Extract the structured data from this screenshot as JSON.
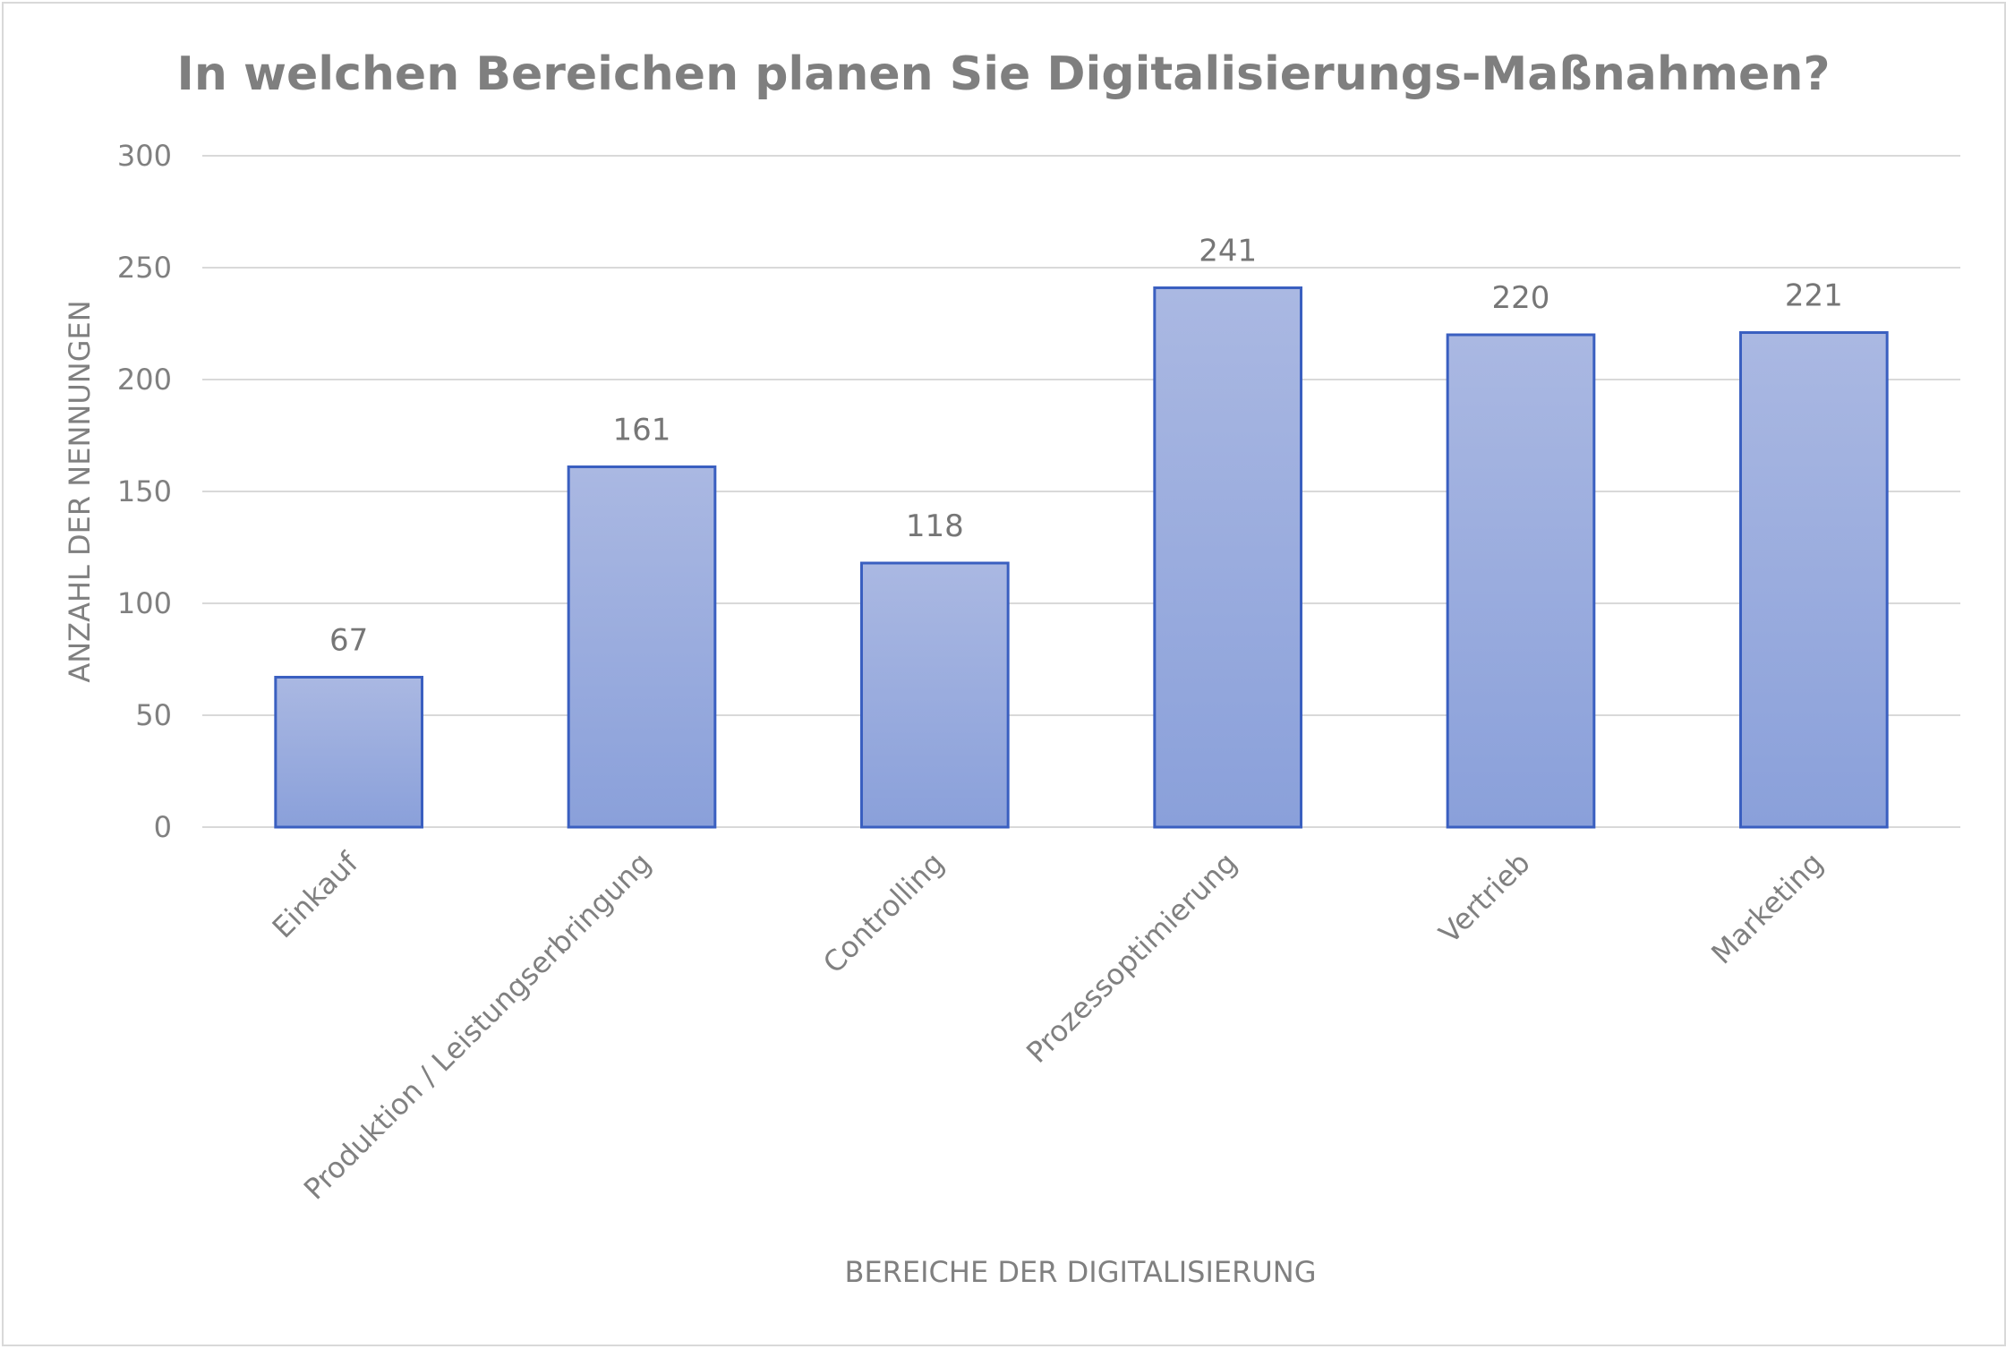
{
  "chart_data": {
    "type": "bar",
    "title": "In welchen Bereichen planen Sie Digitalisierungs-Maßnahmen?",
    "xlabel": "BEREICHE DER DIGITALISIERUNG",
    "ylabel": "ANZAHL DER NENNUNGEN",
    "categories": [
      "Einkauf",
      "Produktion / Leistungserbringung",
      "Controlling",
      "Prozessoptimierung",
      "Vertrieb",
      "Marketing"
    ],
    "values": [
      67,
      161,
      118,
      241,
      220,
      221
    ],
    "ylim": [
      0,
      300
    ],
    "yticks": [
      0,
      50,
      100,
      150,
      200,
      250,
      300
    ],
    "grid": true,
    "data_labels": true,
    "colors": {
      "bar_top": "#aab8e2",
      "bar_bottom": "#8aa0da",
      "bar_border": "#3a5fc0",
      "grid": "#d9d9d9",
      "text": "#808080"
    }
  }
}
